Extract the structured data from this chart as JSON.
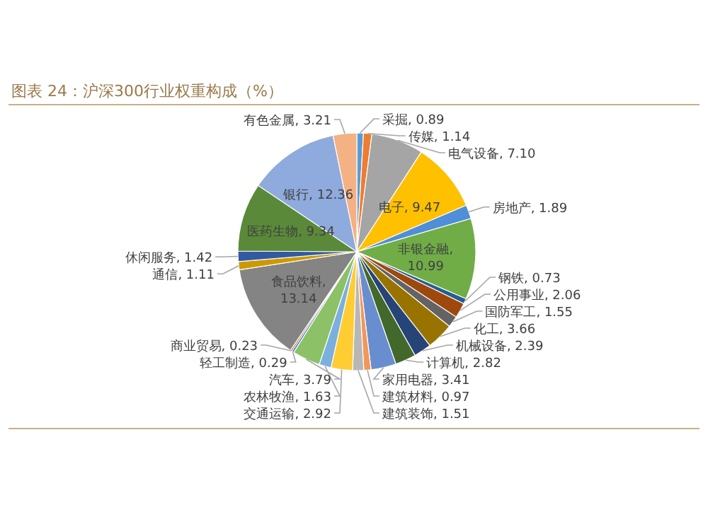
{
  "chart_data": {
    "type": "pie",
    "title": "图表 24：沪深300行业权重构成（%）",
    "categories": [
      "采掘",
      "传媒",
      "电气设备",
      "电子",
      "房地产",
      "非银金融",
      "钢铁",
      "公用事业",
      "国防军工",
      "化工",
      "机械设备",
      "计算机",
      "家用电器",
      "建筑材料",
      "建筑装饰",
      "交通运输",
      "农林牧渔",
      "汽车",
      "轻工制造",
      "商业贸易",
      "食品饮料",
      "通信",
      "休闲服务",
      "医药生物",
      "银行",
      "有色金属"
    ],
    "values": [
      0.89,
      1.14,
      7.1,
      9.47,
      1.89,
      10.99,
      0.73,
      2.06,
      1.55,
      3.66,
      2.39,
      2.82,
      3.41,
      0.97,
      1.51,
      2.92,
      1.63,
      3.79,
      0.29,
      0.23,
      13.14,
      1.11,
      1.42,
      9.34,
      12.36,
      3.21
    ],
    "colors": [
      "#5b9bd5",
      "#ed7d31",
      "#a5a5a5",
      "#ffc000",
      "#4f8ed8",
      "#70ad47",
      "#255e91",
      "#9e480e",
      "#636363",
      "#997300",
      "#264478",
      "#43682b",
      "#698ed0",
      "#f1975a",
      "#b7b7b7",
      "#ffcd33",
      "#7cafdd",
      "#8cc168",
      "#327dc2",
      "#d26012",
      "#848484",
      "#cc9a00",
      "#335aa1",
      "#5a8a39",
      "#8faadc",
      "#f4b183"
    ],
    "value_labels": [
      ", 0.89",
      ", 1.14",
      ", 7.10",
      ", 9.47",
      ", 1.89",
      ", 10.99",
      ", 0.73",
      ", 2.06",
      ", 1.55",
      ", 3.66",
      ", 2.39",
      ", 2.82",
      ", 3.41",
      ", 0.97",
      ", 1.51",
      ", 2.92",
      ", 1.63",
      ", 3.79",
      ", 0.29",
      ", 0.23",
      ", 13.14",
      ", 1.11",
      ", 1.42",
      ", 9.34",
      ", 12.36",
      ", 3.21"
    ],
    "legend": false
  }
}
